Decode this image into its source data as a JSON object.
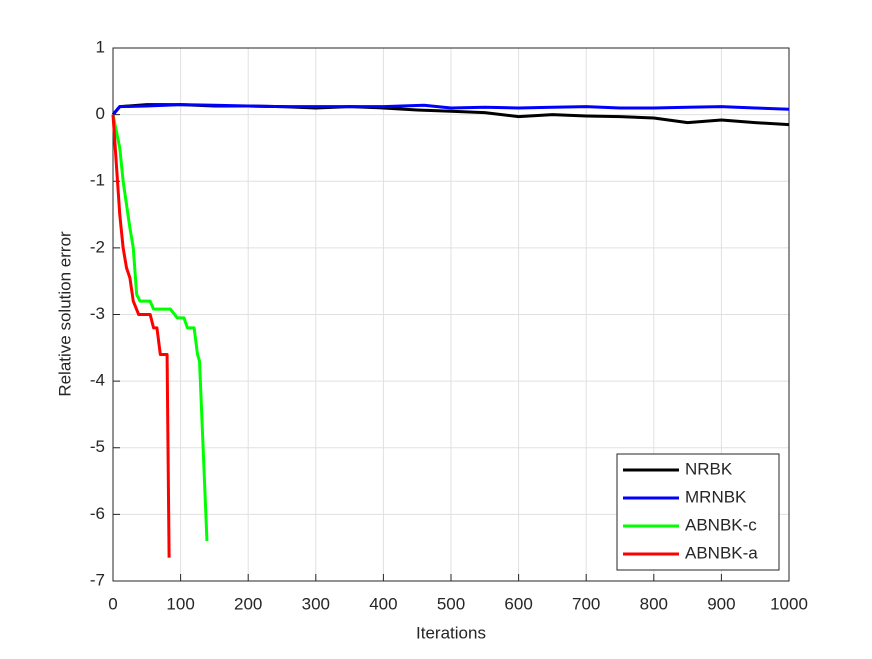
{
  "chart_data": {
    "type": "line",
    "xlabel": "Iterations",
    "ylabel": "Relative solution error",
    "xlim": [
      0,
      1000
    ],
    "xticks": [
      0,
      100,
      200,
      300,
      400,
      500,
      600,
      700,
      800,
      900,
      1000
    ],
    "ylim": [
      -7,
      1
    ],
    "yticks": [
      -7,
      -6,
      -5,
      -4,
      -3,
      -2,
      -1,
      0,
      1
    ],
    "grid": true,
    "legend": "lower right",
    "series": [
      {
        "name": "NRBK",
        "color": "#000000",
        "x": [
          0,
          10,
          50,
          100,
          150,
          200,
          250,
          300,
          350,
          400,
          450,
          500,
          550,
          600,
          650,
          700,
          750,
          800,
          850,
          900,
          950,
          1000
        ],
        "values": [
          0,
          0.12,
          0.15,
          0.15,
          0.13,
          0.13,
          0.12,
          0.1,
          0.12,
          0.1,
          0.07,
          0.05,
          0.03,
          -0.03,
          0,
          -0.02,
          -0.03,
          -0.05,
          -0.12,
          -0.08,
          -0.12,
          -0.15
        ]
      },
      {
        "name": "MRNBK",
        "color": "#0000ff",
        "x": [
          0,
          10,
          50,
          100,
          150,
          200,
          250,
          300,
          350,
          400,
          460,
          500,
          550,
          600,
          650,
          700,
          750,
          800,
          850,
          900,
          950,
          1000
        ],
        "values": [
          0,
          0.12,
          0.13,
          0.15,
          0.14,
          0.13,
          0.12,
          0.12,
          0.12,
          0.12,
          0.14,
          0.1,
          0.11,
          0.1,
          0.11,
          0.12,
          0.1,
          0.1,
          0.11,
          0.12,
          0.1,
          0.08
        ]
      },
      {
        "name": "ABNBK-c",
        "color": "#00ff00",
        "x": [
          0,
          10,
          15,
          25,
          30,
          35,
          40,
          55,
          60,
          85,
          95,
          105,
          110,
          120,
          125,
          128,
          139
        ],
        "values": [
          0,
          -0.5,
          -1,
          -1.7,
          -2,
          -2.7,
          -2.8,
          -2.8,
          -2.92,
          -2.92,
          -3.05,
          -3.05,
          -3.2,
          -3.2,
          -3.6,
          -3.7,
          -6.4
        ]
      },
      {
        "name": "ABNBK-a",
        "color": "#ff0000",
        "x": [
          0,
          10,
          15,
          20,
          25,
          30,
          38,
          55,
          60,
          65,
          70,
          80,
          83
        ],
        "values": [
          0,
          -1.5,
          -2,
          -2.3,
          -2.45,
          -2.8,
          -3,
          -3,
          -3.2,
          -3.2,
          -3.6,
          -3.6,
          -6.65
        ]
      }
    ]
  }
}
